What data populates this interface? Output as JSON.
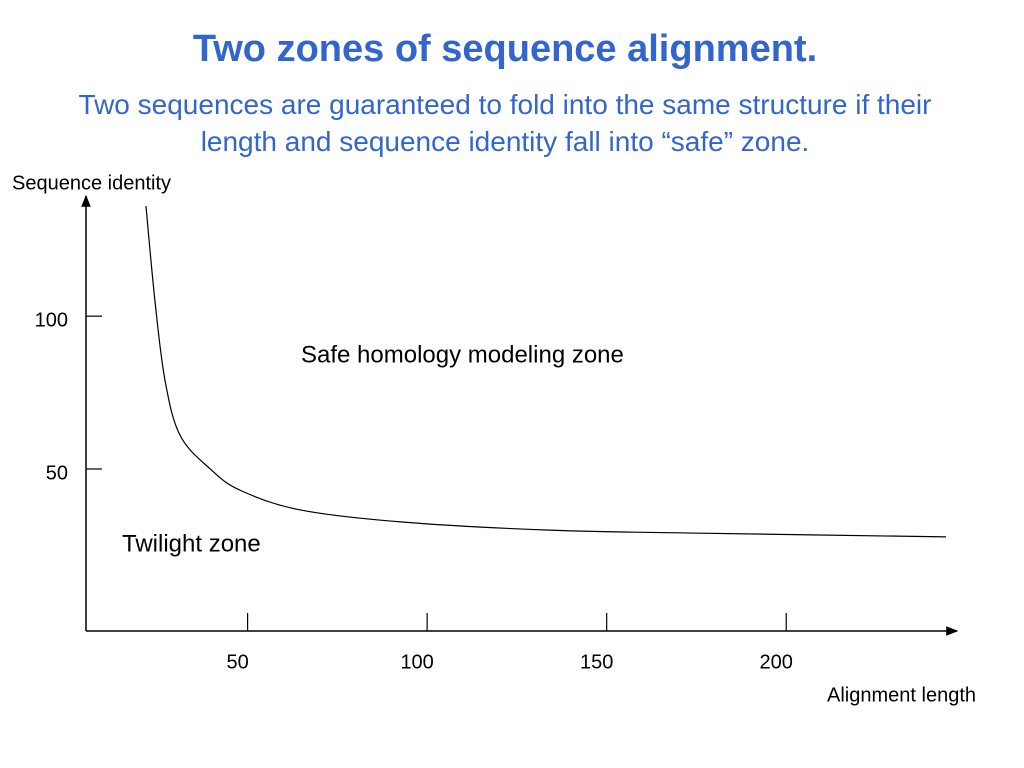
{
  "chart_data": {
    "type": "line",
    "title": "Two zones of sequence alignment.",
    "subtitle": "Two sequences are guaranteed to fold into the same structure if their length and sequence identity fall into “safe” zone.",
    "x_label": "Alignment length",
    "y_label": "Sequence identity",
    "annotations": [
      "Safe homology modeling zone",
      "Twilight zone"
    ],
    "x": [
      21.7,
      24.2,
      27,
      31.2,
      39.6,
      48,
      64.7,
      92.6,
      134,
      176,
      244.5
    ],
    "series": [
      {
        "color": "#000000",
        "values": [
          136,
          105,
          79,
          61,
          50,
          43,
          36.6,
          32.7,
          30,
          29,
          27.8
        ]
      }
    ],
    "xlim": [
      5,
      247
    ],
    "ylim": [
      -3,
      138
    ],
    "xticks": [
      50,
      100,
      150,
      200
    ],
    "yticks": [
      50,
      100
    ]
  }
}
